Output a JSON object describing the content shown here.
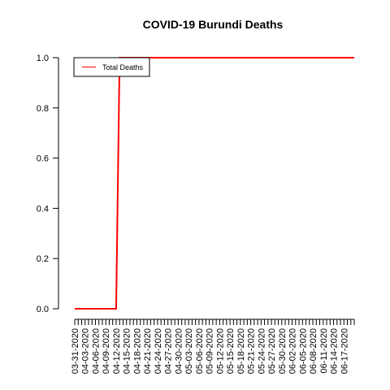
{
  "chart_data": {
    "type": "line",
    "title": "COVID-19 Burundi Deaths",
    "xlabel": "",
    "ylabel": "",
    "x_dates": [
      "03-31-2020",
      "04-01-2020",
      "04-02-2020",
      "04-03-2020",
      "04-04-2020",
      "04-05-2020",
      "04-06-2020",
      "04-07-2020",
      "04-08-2020",
      "04-09-2020",
      "04-10-2020",
      "04-11-2020",
      "04-12-2020",
      "04-13-2020",
      "04-14-2020",
      "04-15-2020",
      "04-16-2020",
      "04-17-2020",
      "04-18-2020",
      "04-19-2020",
      "04-20-2020",
      "04-21-2020",
      "04-22-2020",
      "04-23-2020",
      "04-24-2020",
      "04-25-2020",
      "04-26-2020",
      "04-27-2020",
      "04-28-2020",
      "04-29-2020",
      "04-30-2020",
      "05-01-2020",
      "05-02-2020",
      "05-03-2020",
      "05-04-2020",
      "05-05-2020",
      "05-06-2020",
      "05-07-2020",
      "05-08-2020",
      "05-09-2020",
      "05-10-2020",
      "05-11-2020",
      "05-12-2020",
      "05-13-2020",
      "05-14-2020",
      "05-15-2020",
      "05-16-2020",
      "05-17-2020",
      "05-18-2020",
      "05-19-2020",
      "05-20-2020",
      "05-21-2020",
      "05-22-2020",
      "05-23-2020",
      "05-24-2020",
      "05-25-2020",
      "05-26-2020",
      "05-27-2020",
      "05-28-2020",
      "05-29-2020",
      "05-30-2020",
      "05-31-2020",
      "06-01-2020",
      "06-02-2020",
      "06-03-2020",
      "06-04-2020",
      "06-05-2020",
      "06-06-2020",
      "06-07-2020",
      "06-08-2020",
      "06-09-2020",
      "06-10-2020",
      "06-11-2020",
      "06-12-2020",
      "06-13-2020",
      "06-14-2020",
      "06-15-2020",
      "06-16-2020",
      "06-17-2020",
      "06-18-2020",
      "06-19-2020",
      "06-20-2020"
    ],
    "x_tick_labels": [
      "03-31-2020",
      "04-03-2020",
      "04-06-2020",
      "04-09-2020",
      "04-12-2020",
      "04-15-2020",
      "04-18-2020",
      "04-21-2020",
      "04-24-2020",
      "04-27-2020",
      "04-30-2020",
      "05-03-2020",
      "05-06-2020",
      "05-09-2020",
      "05-12-2020",
      "05-15-2020",
      "05-18-2020",
      "05-21-2020",
      "05-24-2020",
      "05-27-2020",
      "05-30-2020",
      "06-02-2020",
      "06-05-2020",
      "06-08-2020",
      "06-11-2020",
      "06-14-2020",
      "06-17-2020"
    ],
    "series": [
      {
        "name": "Total Deaths",
        "color": "#ff0000",
        "values": [
          0,
          0,
          0,
          0,
          0,
          0,
          0,
          0,
          0,
          0,
          0,
          0,
          0,
          1,
          1,
          1,
          1,
          1,
          1,
          1,
          1,
          1,
          1,
          1,
          1,
          1,
          1,
          1,
          1,
          1,
          1,
          1,
          1,
          1,
          1,
          1,
          1,
          1,
          1,
          1,
          1,
          1,
          1,
          1,
          1,
          1,
          1,
          1,
          1,
          1,
          1,
          1,
          1,
          1,
          1,
          1,
          1,
          1,
          1,
          1,
          1,
          1,
          1,
          1,
          1,
          1,
          1,
          1,
          1,
          1,
          1,
          1,
          1,
          1,
          1,
          1,
          1,
          1,
          1,
          1,
          1,
          1
        ]
      }
    ],
    "y_ticks": [
      0,
      0.2,
      0.4,
      0.6,
      0.8,
      1
    ],
    "y_tick_labels": [
      "0.0",
      "0.2",
      "0.4",
      "0.6",
      "0.8",
      "1.0"
    ],
    "ylim": [
      0,
      1
    ],
    "grid": false,
    "legend": "top-left"
  }
}
